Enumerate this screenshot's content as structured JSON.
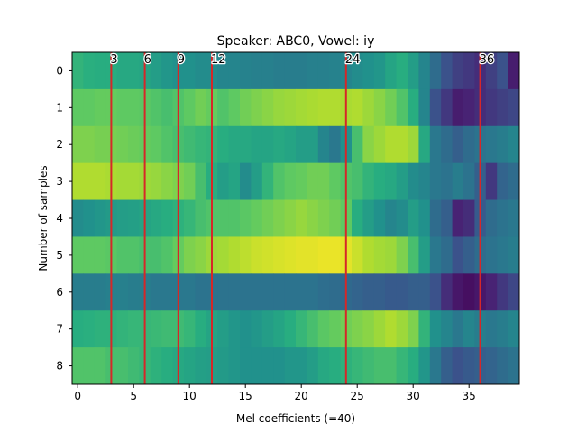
{
  "chart_data": {
    "type": "heatmap",
    "title": "Speaker: ABC0, Vowel: iy",
    "xlabel": "Mel coefficients (=40)",
    "ylabel": "Number of samples",
    "x_ticks": [
      0,
      5,
      10,
      15,
      20,
      25,
      30,
      35
    ],
    "y_ticks": [
      0,
      1,
      2,
      3,
      4,
      5,
      6,
      7,
      8
    ],
    "x_range": [
      -0.5,
      39.5
    ],
    "y_range": [
      -0.5,
      8.5
    ],
    "colormap": "viridis",
    "marker_color": "#d62728",
    "markers": [
      {
        "x": 3,
        "label": "3"
      },
      {
        "x": 6,
        "label": "6"
      },
      {
        "x": 9,
        "label": "9"
      },
      {
        "x": 12,
        "label": "12"
      },
      {
        "x": 24,
        "label": "24"
      },
      {
        "x": 36,
        "label": "36"
      }
    ],
    "values": [
      [
        0.65,
        0.63,
        0.62,
        0.62,
        0.6,
        0.6,
        0.58,
        0.55,
        0.52,
        0.5,
        0.5,
        0.48,
        0.48,
        0.45,
        0.45,
        0.44,
        0.43,
        0.43,
        0.42,
        0.42,
        0.42,
        0.43,
        0.43,
        0.44,
        0.45,
        0.48,
        0.5,
        0.52,
        0.58,
        0.62,
        0.55,
        0.45,
        0.35,
        0.25,
        0.2,
        0.18,
        0.15,
        0.2,
        0.25,
        0.1
      ],
      [
        0.75,
        0.75,
        0.76,
        0.76,
        0.75,
        0.75,
        0.74,
        0.72,
        0.7,
        0.72,
        0.75,
        0.78,
        0.76,
        0.72,
        0.75,
        0.78,
        0.8,
        0.82,
        0.84,
        0.85,
        0.86,
        0.87,
        0.88,
        0.88,
        0.87,
        0.88,
        0.85,
        0.82,
        0.78,
        0.72,
        0.62,
        0.45,
        0.25,
        0.18,
        0.1,
        0.12,
        0.15,
        0.18,
        0.2,
        0.22
      ],
      [
        0.8,
        0.8,
        0.79,
        0.79,
        0.78,
        0.77,
        0.76,
        0.75,
        0.72,
        0.7,
        0.68,
        0.66,
        0.65,
        0.62,
        0.6,
        0.6,
        0.58,
        0.58,
        0.6,
        0.58,
        0.55,
        0.55,
        0.45,
        0.4,
        0.5,
        0.7,
        0.82,
        0.85,
        0.88,
        0.88,
        0.85,
        0.6,
        0.4,
        0.35,
        0.3,
        0.35,
        0.38,
        0.4,
        0.42,
        0.45
      ],
      [
        0.88,
        0.88,
        0.88,
        0.87,
        0.86,
        0.86,
        0.85,
        0.84,
        0.82,
        0.8,
        0.78,
        0.7,
        0.62,
        0.55,
        0.58,
        0.48,
        0.55,
        0.65,
        0.72,
        0.75,
        0.76,
        0.78,
        0.78,
        0.75,
        0.72,
        0.7,
        0.65,
        0.62,
        0.6,
        0.55,
        0.48,
        0.45,
        0.4,
        0.38,
        0.42,
        0.38,
        0.3,
        0.18,
        0.32,
        0.35
      ],
      [
        0.48,
        0.5,
        0.52,
        0.54,
        0.55,
        0.56,
        0.58,
        0.6,
        0.62,
        0.64,
        0.66,
        0.7,
        0.72,
        0.72,
        0.72,
        0.74,
        0.76,
        0.78,
        0.8,
        0.82,
        0.84,
        0.82,
        0.8,
        0.78,
        0.75,
        0.62,
        0.55,
        0.5,
        0.45,
        0.48,
        0.55,
        0.5,
        0.35,
        0.3,
        0.12,
        0.15,
        0.28,
        0.35,
        0.38,
        0.4
      ],
      [
        0.75,
        0.75,
        0.75,
        0.74,
        0.72,
        0.72,
        0.7,
        0.7,
        0.72,
        0.76,
        0.8,
        0.82,
        0.85,
        0.86,
        0.88,
        0.9,
        0.92,
        0.93,
        0.94,
        0.95,
        0.96,
        0.96,
        0.97,
        0.97,
        0.96,
        0.92,
        0.88,
        0.86,
        0.85,
        0.8,
        0.7,
        0.55,
        0.4,
        0.35,
        0.25,
        0.3,
        0.35,
        0.38,
        0.4,
        0.42
      ],
      [
        0.42,
        0.42,
        0.42,
        0.43,
        0.43,
        0.42,
        0.42,
        0.4,
        0.4,
        0.4,
        0.4,
        0.38,
        0.38,
        0.38,
        0.38,
        0.38,
        0.38,
        0.38,
        0.38,
        0.38,
        0.38,
        0.38,
        0.36,
        0.35,
        0.34,
        0.32,
        0.3,
        0.3,
        0.28,
        0.28,
        0.3,
        0.3,
        0.25,
        0.15,
        0.08,
        0.05,
        0.08,
        0.12,
        0.18,
        0.22
      ],
      [
        0.62,
        0.63,
        0.64,
        0.64,
        0.65,
        0.66,
        0.66,
        0.67,
        0.68,
        0.68,
        0.66,
        0.62,
        0.58,
        0.55,
        0.52,
        0.5,
        0.52,
        0.55,
        0.58,
        0.62,
        0.66,
        0.7,
        0.74,
        0.76,
        0.78,
        0.8,
        0.82,
        0.85,
        0.88,
        0.85,
        0.8,
        0.65,
        0.5,
        0.45,
        0.4,
        0.45,
        0.42,
        0.4,
        0.42,
        0.45
      ],
      [
        0.72,
        0.72,
        0.72,
        0.7,
        0.7,
        0.68,
        0.66,
        0.64,
        0.62,
        0.6,
        0.58,
        0.56,
        0.55,
        0.54,
        0.52,
        0.5,
        0.5,
        0.5,
        0.5,
        0.52,
        0.52,
        0.55,
        0.6,
        0.62,
        0.64,
        0.66,
        0.68,
        0.7,
        0.7,
        0.66,
        0.62,
        0.52,
        0.4,
        0.3,
        0.25,
        0.28,
        0.3,
        0.32,
        0.35,
        0.38
      ]
    ]
  }
}
